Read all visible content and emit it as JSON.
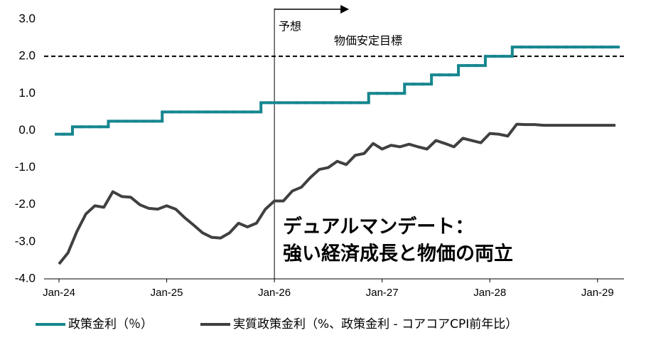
{
  "chart_data": {
    "type": "line",
    "categories": [
      "Jan-24",
      null,
      null,
      null,
      null,
      null,
      null,
      null,
      null,
      null,
      null,
      null,
      "Jan-25",
      null,
      null,
      null,
      null,
      null,
      null,
      null,
      null,
      null,
      null,
      null,
      "Jan-26",
      null,
      null,
      null,
      null,
      null,
      null,
      null,
      null,
      null,
      null,
      null,
      "Jan-27",
      null,
      null,
      null,
      null,
      null,
      null,
      null,
      null,
      null,
      null,
      null,
      "Jan-28",
      null,
      null,
      null,
      null,
      null,
      null,
      null,
      null,
      null,
      null,
      null,
      "Jan-29",
      null,
      null
    ],
    "series": [
      {
        "name": "政策金利（％）",
        "color": "#16868f",
        "step": true,
        "values": [
          -0.1,
          -0.1,
          0.1,
          0.1,
          0.1,
          0.1,
          0.25,
          0.25,
          0.25,
          0.25,
          0.25,
          0.25,
          0.5,
          0.5,
          0.5,
          0.5,
          0.5,
          0.5,
          0.5,
          0.5,
          0.5,
          0.5,
          0.5,
          0.75,
          0.75,
          0.75,
          0.75,
          0.75,
          0.75,
          0.75,
          0.75,
          0.75,
          0.75,
          0.75,
          0.75,
          1.0,
          1.0,
          1.0,
          1.0,
          1.25,
          1.25,
          1.25,
          1.5,
          1.5,
          1.5,
          1.75,
          1.75,
          1.75,
          2.0,
          2.0,
          2.0,
          2.25,
          2.25,
          2.25,
          2.25,
          2.25,
          2.25,
          2.25,
          2.25,
          2.25,
          2.25,
          2.25,
          2.25
        ]
      },
      {
        "name": "実質政策金利（%、政策金利 - コアコアCPI前年比）",
        "color": "#404040",
        "step": false,
        "values": [
          -3.6,
          -3.3,
          -2.72,
          -2.25,
          -2.03,
          -2.07,
          -1.65,
          -1.78,
          -1.8,
          -2.0,
          -2.1,
          -2.12,
          -2.03,
          -2.12,
          -2.35,
          -2.55,
          -2.76,
          -2.88,
          -2.9,
          -2.76,
          -2.5,
          -2.6,
          -2.5,
          -2.12,
          -1.9,
          -1.9,
          -1.63,
          -1.53,
          -1.27,
          -1.05,
          -1.0,
          -0.83,
          -0.92,
          -0.67,
          -0.62,
          -0.35,
          -0.5,
          -0.4,
          -0.44,
          -0.37,
          -0.44,
          -0.5,
          -0.27,
          -0.35,
          -0.44,
          -0.21,
          -0.27,
          -0.33,
          -0.08,
          -0.1,
          -0.15,
          0.17,
          0.16,
          0.16,
          0.14,
          0.14,
          0.14,
          0.14,
          0.14,
          0.14,
          0.14,
          0.14,
          0.14
        ]
      }
    ],
    "ylim": [
      -4,
      3
    ],
    "yticks": [
      {
        "value": 3,
        "label": "3.0"
      },
      {
        "value": 2,
        "label": "2.0"
      },
      {
        "value": 1,
        "label": "1.0"
      },
      {
        "value": 0,
        "label": "0.0"
      },
      {
        "value": -1,
        "label": "-1.0"
      },
      {
        "value": -2,
        "label": "-2.0"
      },
      {
        "value": -3,
        "label": "-3.0"
      },
      {
        "value": -4,
        "label": "-4.0"
      }
    ],
    "negative_ytick_color": "#e00000",
    "target": {
      "value": 2,
      "label": "物価安定目標"
    },
    "forecast": {
      "label": "予想",
      "start": "Jan-26"
    },
    "annotation": {
      "lines": [
        "デュアルマンデート：",
        "強い経済成長と物価の両立"
      ],
      "color": "#e00000"
    },
    "legend": "bottom"
  }
}
